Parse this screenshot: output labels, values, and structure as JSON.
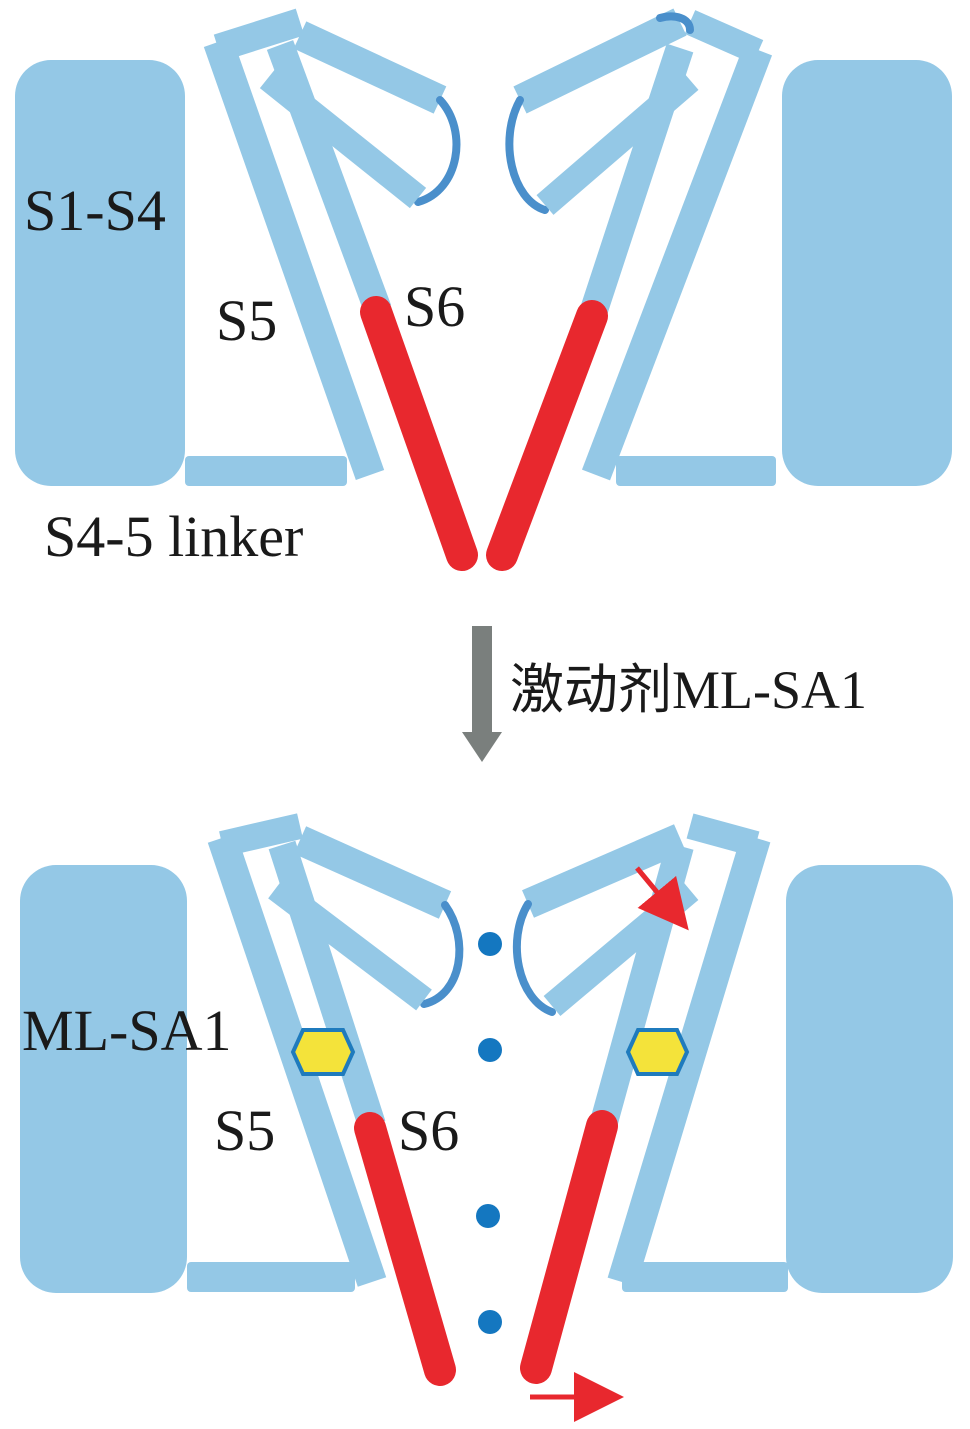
{
  "colors": {
    "helix": "#94c8e6",
    "loop": "#4a8fcb",
    "gate_helix": "#e8282e",
    "agonist": "#f4e33a",
    "agonist_outline": "#1f7bbd",
    "ion": "#1477c0",
    "process_arrow": "#7a7f7d",
    "movement_arrow": "#e8282e"
  },
  "closed_state": {
    "label_vsd": "S1-S4",
    "label_s5": "S5",
    "label_s6": "S6",
    "label_linker": "S4-5 linker"
  },
  "transition": {
    "label": "激动剂ML-SA1"
  },
  "open_state": {
    "label_agonist": "ML-SA1",
    "label_s5": "S5",
    "label_s6": "S6"
  }
}
